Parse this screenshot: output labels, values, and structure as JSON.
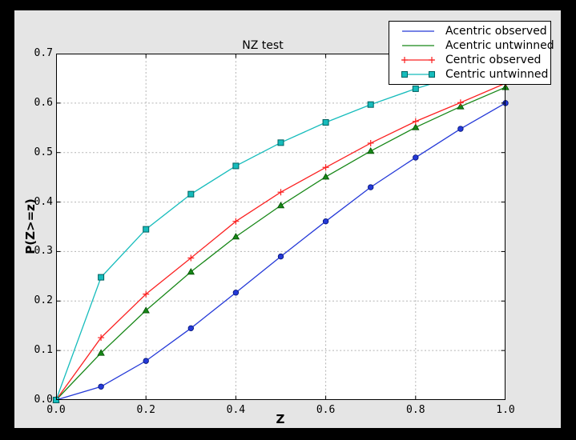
{
  "window": {
    "outer_bg": "#000000",
    "figure_bg": "#e5e5e5",
    "plot_bg": "#ffffff",
    "frame_color": "#000000",
    "grid_color": "#b3b3b3"
  },
  "chart_data": {
    "type": "line",
    "title": "NZ test",
    "xlabel": "Z",
    "ylabel": "P(Z>=z)",
    "xlim": [
      0.0,
      1.0
    ],
    "ylim": [
      0.0,
      0.7
    ],
    "grid": true,
    "legend_position": "upper right",
    "xticks": [
      0.0,
      0.2,
      0.4,
      0.6,
      0.8,
      1.0
    ],
    "xtick_labels": [
      "0.0",
      "0.2",
      "0.4",
      "0.6",
      "0.8",
      "1.0"
    ],
    "yticks": [
      0.0,
      0.1,
      0.2,
      0.3,
      0.4,
      0.5,
      0.6,
      0.7
    ],
    "ytick_labels": [
      "0.0",
      "0.1",
      "0.2",
      "0.3",
      "0.4",
      "0.5",
      "0.6",
      "0.7"
    ],
    "x": [
      0.0,
      0.1,
      0.2,
      0.3,
      0.4,
      0.5,
      0.6,
      0.7,
      0.8,
      0.9,
      1.0
    ],
    "series": [
      {
        "name": "Acentric observed",
        "color": "#2439d8",
        "edge": "#001070",
        "marker": "circle",
        "legend_marker": "none",
        "values": [
          0.0,
          0.027,
          0.079,
          0.145,
          0.217,
          0.29,
          0.361,
          0.43,
          0.49,
          0.548,
          0.6
        ]
      },
      {
        "name": "Acentric untwinned",
        "color": "#178717",
        "edge": "#004d00",
        "marker": "triangle",
        "legend_marker": "none",
        "values": [
          0.0,
          0.095,
          0.181,
          0.259,
          0.33,
          0.393,
          0.451,
          0.503,
          0.551,
          0.593,
          0.632
        ]
      },
      {
        "name": "Centric observed",
        "color": "#fb2222",
        "edge": "#fb2222",
        "marker": "plus",
        "legend_marker": "plus",
        "values": [
          0.0,
          0.126,
          0.214,
          0.287,
          0.361,
          0.42,
          0.47,
          0.519,
          0.563,
          0.601,
          0.64
        ]
      },
      {
        "name": "Centric untwinned",
        "color": "#16bcbc",
        "edge": "#00605f",
        "marker": "square",
        "legend_marker": "square",
        "values": [
          0.0,
          0.248,
          0.345,
          0.416,
          0.473,
          0.52,
          0.561,
          0.597,
          0.629,
          0.657,
          0.683
        ]
      }
    ]
  }
}
